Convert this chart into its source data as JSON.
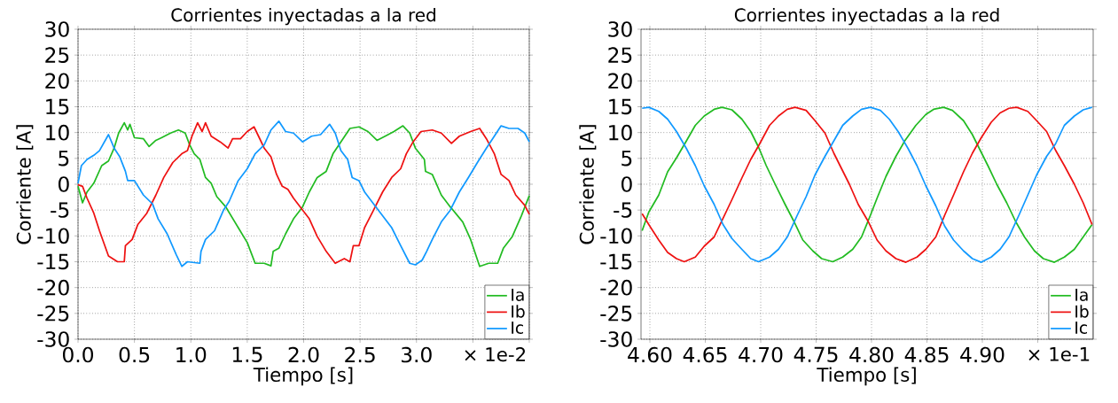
{
  "chart_data": [
    {
      "type": "line",
      "title": "Corrientes inyectadas a la red",
      "xlabel": "Tiempo [s]",
      "ylabel": "Corriente [A]",
      "xlim": [
        0,
        4.0
      ],
      "ylim": [
        -30,
        30
      ],
      "xticks": [
        {
          "value": 0,
          "label": "0.0"
        },
        {
          "value": 0.5,
          "label": "0.5"
        },
        {
          "value": 1.0,
          "label": "1.0"
        },
        {
          "value": 1.5,
          "label": "1.5"
        },
        {
          "value": 2.0,
          "label": "2.0"
        },
        {
          "value": 2.5,
          "label": "2.5"
        },
        {
          "value": 3.0,
          "label": "3.0"
        },
        {
          "value": 3.5,
          "label": null
        },
        {
          "value": 4.0,
          "label": null
        }
      ],
      "yticks": [
        -30,
        -25,
        -20,
        -15,
        -10,
        -5,
        0,
        5,
        10,
        15,
        20,
        25,
        30
      ],
      "grid": true,
      "legend": "bottom right",
      "annotations": [
        "× 1e-2"
      ],
      "series": [
        {
          "name": "Ia",
          "color": "#22bb22",
          "x": [
            0,
            0.04,
            0.08,
            0.14,
            0.21,
            0.27,
            0.32,
            0.36,
            0.41,
            0.44,
            0.46,
            0.5,
            0.58,
            0.63,
            0.69,
            0.74,
            0.82,
            0.89,
            0.95,
            0.99,
            1.03,
            1.08,
            1.13,
            1.18,
            1.23,
            1.31,
            1.42,
            1.5,
            1.57,
            1.65,
            1.71,
            1.73,
            1.78,
            1.84,
            1.91,
            1.99,
            2.05,
            2.12,
            2.2,
            2.26,
            2.33,
            2.41,
            2.49,
            2.57,
            2.65,
            2.73,
            2.8,
            2.88,
            2.94,
            2.99,
            3.07,
            3.08,
            3.14,
            3.22,
            3.3,
            3.41,
            3.48,
            3.56,
            3.64,
            3.72,
            3.77,
            3.85,
            3.93,
            4.0
          ],
          "values": [
            -0.4,
            -3.6,
            -1.5,
            0.2,
            3.6,
            4.5,
            7,
            9.9,
            11.9,
            10.5,
            11.6,
            9,
            8.8,
            7.3,
            8.5,
            9,
            9.9,
            10.5,
            9.9,
            7.6,
            5.9,
            4.8,
            1.3,
            0.2,
            -2.4,
            -4.4,
            -8.4,
            -11.3,
            -15.3,
            -15.3,
            -15.8,
            -13,
            -12.4,
            -9.6,
            -6.7,
            -4.4,
            -1.5,
            1.3,
            2.5,
            5.9,
            8.2,
            10.8,
            11.1,
            10.2,
            8.5,
            9.4,
            10.2,
            11.3,
            9.9,
            7,
            4.8,
            2.5,
            1.9,
            -2.1,
            -4.4,
            -7.3,
            -10.7,
            -15.9,
            -15.3,
            -15.3,
            -12.4,
            -10.1,
            -6.1,
            -2.2
          ]
        },
        {
          "name": "Ib",
          "color": "#ee1111",
          "x": [
            0,
            0.04,
            0.08,
            0.14,
            0.19,
            0.27,
            0.35,
            0.41,
            0.42,
            0.48,
            0.53,
            0.61,
            0.69,
            0.76,
            0.84,
            0.92,
            0.97,
            1.01,
            1.06,
            1.1,
            1.13,
            1.18,
            1.26,
            1.33,
            1.37,
            1.44,
            1.5,
            1.56,
            1.6,
            1.65,
            1.71,
            1.76,
            1.81,
            1.86,
            1.91,
            1.97,
            2.05,
            2.12,
            2.2,
            2.28,
            2.36,
            2.41,
            2.44,
            2.49,
            2.54,
            2.62,
            2.7,
            2.78,
            2.86,
            2.91,
            2.97,
            3.04,
            3.14,
            3.22,
            3.31,
            3.38,
            3.48,
            3.56,
            3.62,
            3.69,
            3.75,
            3.82,
            3.88,
            3.96,
            4.0
          ],
          "values": [
            -0.1,
            -0.4,
            -2.7,
            -5.6,
            -9,
            -13.9,
            -15,
            -15,
            -11.9,
            -10.7,
            -7.8,
            -5.6,
            -2.1,
            1.3,
            4.2,
            5.9,
            6.5,
            9.3,
            11.9,
            10.2,
            11.9,
            9.3,
            8.2,
            7,
            8.8,
            8.8,
            10.2,
            11.1,
            9.3,
            7,
            5.3,
            1.9,
            -0.4,
            -1,
            -2.7,
            -4.4,
            -6.7,
            -10.1,
            -13,
            -15.3,
            -14.4,
            -15,
            -11.9,
            -11.9,
            -8.4,
            -5,
            -1.5,
            1.3,
            3,
            5.9,
            8.2,
            10.2,
            10.5,
            9.9,
            7.9,
            9.3,
            10.2,
            10.8,
            8.8,
            5.9,
            1.9,
            0.7,
            -2.1,
            -4.1,
            -5.8
          ]
        },
        {
          "name": "Ic",
          "color": "#1199ff",
          "x": [
            0,
            0.03,
            0.08,
            0.14,
            0.19,
            0.27,
            0.32,
            0.37,
            0.42,
            0.44,
            0.5,
            0.58,
            0.66,
            0.71,
            0.79,
            0.87,
            0.92,
            0.97,
            1.08,
            1.09,
            1.13,
            1.21,
            1.29,
            1.34,
            1.42,
            1.5,
            1.57,
            1.65,
            1.71,
            1.78,
            1.84,
            1.91,
            1.99,
            2.07,
            2.15,
            2.23,
            2.28,
            2.33,
            2.39,
            2.43,
            2.49,
            2.54,
            2.62,
            2.7,
            2.78,
            2.86,
            2.94,
            2.99,
            3.05,
            3.09,
            3.14,
            3.22,
            3.3,
            3.38,
            3.46,
            3.54,
            3.62,
            3.69,
            3.75,
            3.82,
            3.9,
            3.96,
            4.0
          ],
          "values": [
            0.2,
            3.6,
            4.8,
            5.6,
            6.5,
            9.6,
            7,
            5.3,
            2.5,
            0.7,
            0.7,
            -2.1,
            -3.8,
            -6.7,
            -9.6,
            -13.6,
            -15.9,
            -15,
            -15.3,
            -13,
            -10.7,
            -9,
            -5,
            -3.3,
            0.7,
            3,
            5.9,
            7.6,
            10.5,
            12.2,
            10.2,
            9.9,
            8.2,
            9.3,
            9.6,
            11.6,
            9.9,
            6.5,
            4.8,
            1.3,
            0.7,
            -1.5,
            -3.8,
            -6.1,
            -8.4,
            -11.9,
            -15.3,
            -15.6,
            -14.7,
            -13,
            -10.7,
            -7.3,
            -5,
            -1.5,
            1.3,
            4.2,
            7,
            9.3,
            11.3,
            10.8,
            10.8,
            9.9,
            8.2
          ]
        }
      ]
    },
    {
      "type": "line",
      "title": "Corrientes inyectadas a la red",
      "xlabel": "Tiempo [s]",
      "ylabel": "Corriente [A]",
      "xlim": [
        4.592,
        5.0
      ],
      "ylim": [
        -30,
        30
      ],
      "xticks": [
        {
          "value": 4.6,
          "label": "4.60"
        },
        {
          "value": 4.65,
          "label": "4.65"
        },
        {
          "value": 4.7,
          "label": "4.70"
        },
        {
          "value": 4.75,
          "label": "4.75"
        },
        {
          "value": 4.8,
          "label": "4.80"
        },
        {
          "value": 4.85,
          "label": "4.85"
        },
        {
          "value": 4.9,
          "label": "4.90"
        },
        {
          "value": 4.95,
          "label": null
        }
      ],
      "yticks": [
        -30,
        -25,
        -20,
        -15,
        -10,
        -5,
        0,
        5,
        10,
        15,
        20,
        25,
        30
      ],
      "grid": true,
      "legend": "bottom right",
      "annotations": [
        "× 1e-1"
      ],
      "series": [
        {
          "name": "Ia",
          "color": "#22bb22",
          "x": [
            4.593,
            4.599,
            4.608,
            4.616,
            4.624,
            4.633,
            4.641,
            4.649,
            4.658,
            4.665,
            4.674,
            4.683,
            4.691,
            4.698,
            4.705,
            4.713,
            4.722,
            4.73,
            4.738,
            4.747,
            4.755,
            4.765,
            4.774,
            4.783,
            4.791,
            4.799,
            4.805,
            4.813,
            4.822,
            4.83,
            4.84,
            4.849,
            4.856,
            4.865,
            4.873,
            4.883,
            4.891,
            4.898,
            4.905,
            4.913,
            4.922,
            4.93,
            4.938,
            4.947,
            4.955,
            4.965,
            4.974,
            4.983,
            4.991,
            4.999
          ],
          "values": [
            -9,
            -5.4,
            -2.1,
            2.4,
            5.1,
            8.4,
            11.4,
            13.2,
            14.5,
            14.9,
            14.4,
            12.6,
            10.2,
            7.2,
            3.6,
            0,
            -3.9,
            -7.2,
            -10.8,
            -12.9,
            -14.4,
            -15,
            -14.1,
            -12.6,
            -10.2,
            -6,
            -2.7,
            1.5,
            5.4,
            8.4,
            11.4,
            13.5,
            14.5,
            14.9,
            14.3,
            12.3,
            9.6,
            6.6,
            3.6,
            0,
            -3.6,
            -7.2,
            -10.2,
            -12.9,
            -14.4,
            -15.1,
            -14.1,
            -12.6,
            -10.2,
            -7.8
          ]
        },
        {
          "name": "Ib",
          "color": "#ee1111",
          "x": [
            4.593,
            4.599,
            4.608,
            4.616,
            4.624,
            4.631,
            4.641,
            4.649,
            4.658,
            4.666,
            4.674,
            4.683,
            4.691,
            4.699,
            4.708,
            4.716,
            4.724,
            4.731,
            4.741,
            4.749,
            4.758,
            4.766,
            4.773,
            4.78,
            4.788,
            4.797,
            4.805,
            4.813,
            4.822,
            4.831,
            4.841,
            4.849,
            4.858,
            4.866,
            4.874,
            4.883,
            4.891,
            4.899,
            4.908,
            4.916,
            4.924,
            4.931,
            4.941,
            4.949,
            4.958,
            4.966,
            4.974,
            4.983,
            4.991,
            4.999
          ],
          "values": [
            -5.7,
            -7.8,
            -10.8,
            -13.2,
            -14.4,
            -15,
            -14.1,
            -12,
            -10.2,
            -6.6,
            -3,
            1.2,
            4.8,
            7.8,
            11.4,
            13.2,
            14.5,
            14.9,
            14.3,
            12.3,
            9.9,
            6,
            3,
            0,
            -3.9,
            -7.2,
            -10.8,
            -12.9,
            -14.4,
            -15.1,
            -14.1,
            -12.6,
            -10.2,
            -6,
            -2.1,
            2.4,
            6,
            9,
            12,
            13.8,
            14.7,
            14.9,
            14.1,
            12.3,
            10.2,
            6.6,
            3.6,
            0,
            -3.6,
            -7.8
          ]
        },
        {
          "name": "Ic",
          "color": "#1199ff",
          "x": [
            4.593,
            4.599,
            4.608,
            4.616,
            4.624,
            4.633,
            4.641,
            4.649,
            4.658,
            4.666,
            4.674,
            4.683,
            4.691,
            4.698,
            4.708,
            4.716,
            4.724,
            4.733,
            4.741,
            4.749,
            4.758,
            4.766,
            4.774,
            4.783,
            4.791,
            4.799,
            4.808,
            4.816,
            4.824,
            4.833,
            4.841,
            4.849,
            4.858,
            4.866,
            4.874,
            4.883,
            4.891,
            4.899,
            4.908,
            4.916,
            4.924,
            4.933,
            4.941,
            4.949,
            4.958,
            4.966,
            4.974,
            4.983,
            4.991,
            4.999
          ],
          "values": [
            14.7,
            14.9,
            14.1,
            12.6,
            10.2,
            6.9,
            3.6,
            -0.3,
            -3.9,
            -7.8,
            -10.5,
            -12.6,
            -14.4,
            -15,
            -14.1,
            -12.6,
            -10.2,
            -6,
            -2.4,
            1.8,
            5.4,
            8.4,
            11.4,
            13.2,
            14.5,
            14.9,
            14.3,
            12.6,
            10.2,
            6.9,
            3.6,
            -0.3,
            -4.2,
            -8.1,
            -10.8,
            -12.9,
            -14.4,
            -15.1,
            -14.1,
            -12.6,
            -10.2,
            -6,
            -2.1,
            1.8,
            5.4,
            7.8,
            11.4,
            13.2,
            14.4,
            14.9
          ]
        }
      ]
    }
  ]
}
